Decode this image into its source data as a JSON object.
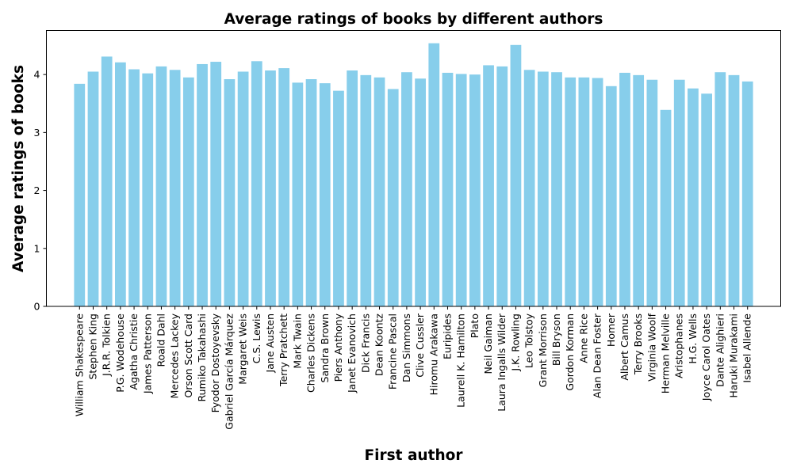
{
  "chart_data": {
    "type": "bar",
    "title": "Average ratings of books by different authors",
    "xlabel": "First author",
    "ylabel": "Average ratings of books",
    "ylim": [
      0,
      4.76
    ],
    "yticks": [
      0,
      1,
      2,
      3,
      4
    ],
    "grid": false,
    "bar_color": "#87ceeb",
    "categories": [
      "William Shakespeare",
      "Stephen King",
      "J.R.R. Tolkien",
      "P.G. Wodehouse",
      "Agatha Christie",
      "James Patterson",
      "Roald Dahl",
      "Mercedes Lackey",
      "Orson Scott Card",
      "Rumiko Takahashi",
      "Fyodor Dostoyevsky",
      "Gabriel García Márquez",
      "Margaret Weis",
      "C.S. Lewis",
      "Jane Austen",
      "Terry Pratchett",
      "Mark Twain",
      "Charles Dickens",
      "Sandra Brown",
      "Piers Anthony",
      "Janet Evanovich",
      "Dick Francis",
      "Dean Koontz",
      "Francine Pascal",
      "Dan Simmons",
      "Clive Cussler",
      "Hiromu Arakawa",
      "Euripides",
      "Laurell K. Hamilton",
      "Plato",
      "Neil Gaiman",
      "Laura Ingalls Wilder",
      "J.K. Rowling",
      "Leo Tolstoy",
      "Grant Morrison",
      "Bill Bryson",
      "Gordon Korman",
      "Anne Rice",
      "Alan Dean Foster",
      "Homer",
      "Albert Camus",
      "Terry Brooks",
      "Virginia Woolf",
      "Herman Melville",
      "Aristophanes",
      "H.G. Wells",
      "Joyce Carol Oates",
      "Dante Alighieri",
      "Haruki Murakami",
      "Isabel Allende"
    ],
    "values": [
      3.84,
      4.05,
      4.31,
      4.21,
      4.09,
      4.02,
      4.14,
      4.08,
      3.95,
      4.18,
      4.22,
      3.92,
      4.05,
      4.23,
      4.07,
      4.11,
      3.86,
      3.92,
      3.85,
      3.72,
      4.07,
      3.99,
      3.95,
      3.75,
      4.04,
      3.93,
      4.54,
      4.03,
      4.01,
      4.0,
      4.16,
      4.14,
      4.51,
      4.08,
      4.05,
      4.04,
      3.95,
      3.95,
      3.94,
      3.8,
      4.03,
      3.99,
      3.91,
      3.39,
      3.91,
      3.76,
      3.67,
      4.04,
      3.99,
      3.88
    ]
  }
}
